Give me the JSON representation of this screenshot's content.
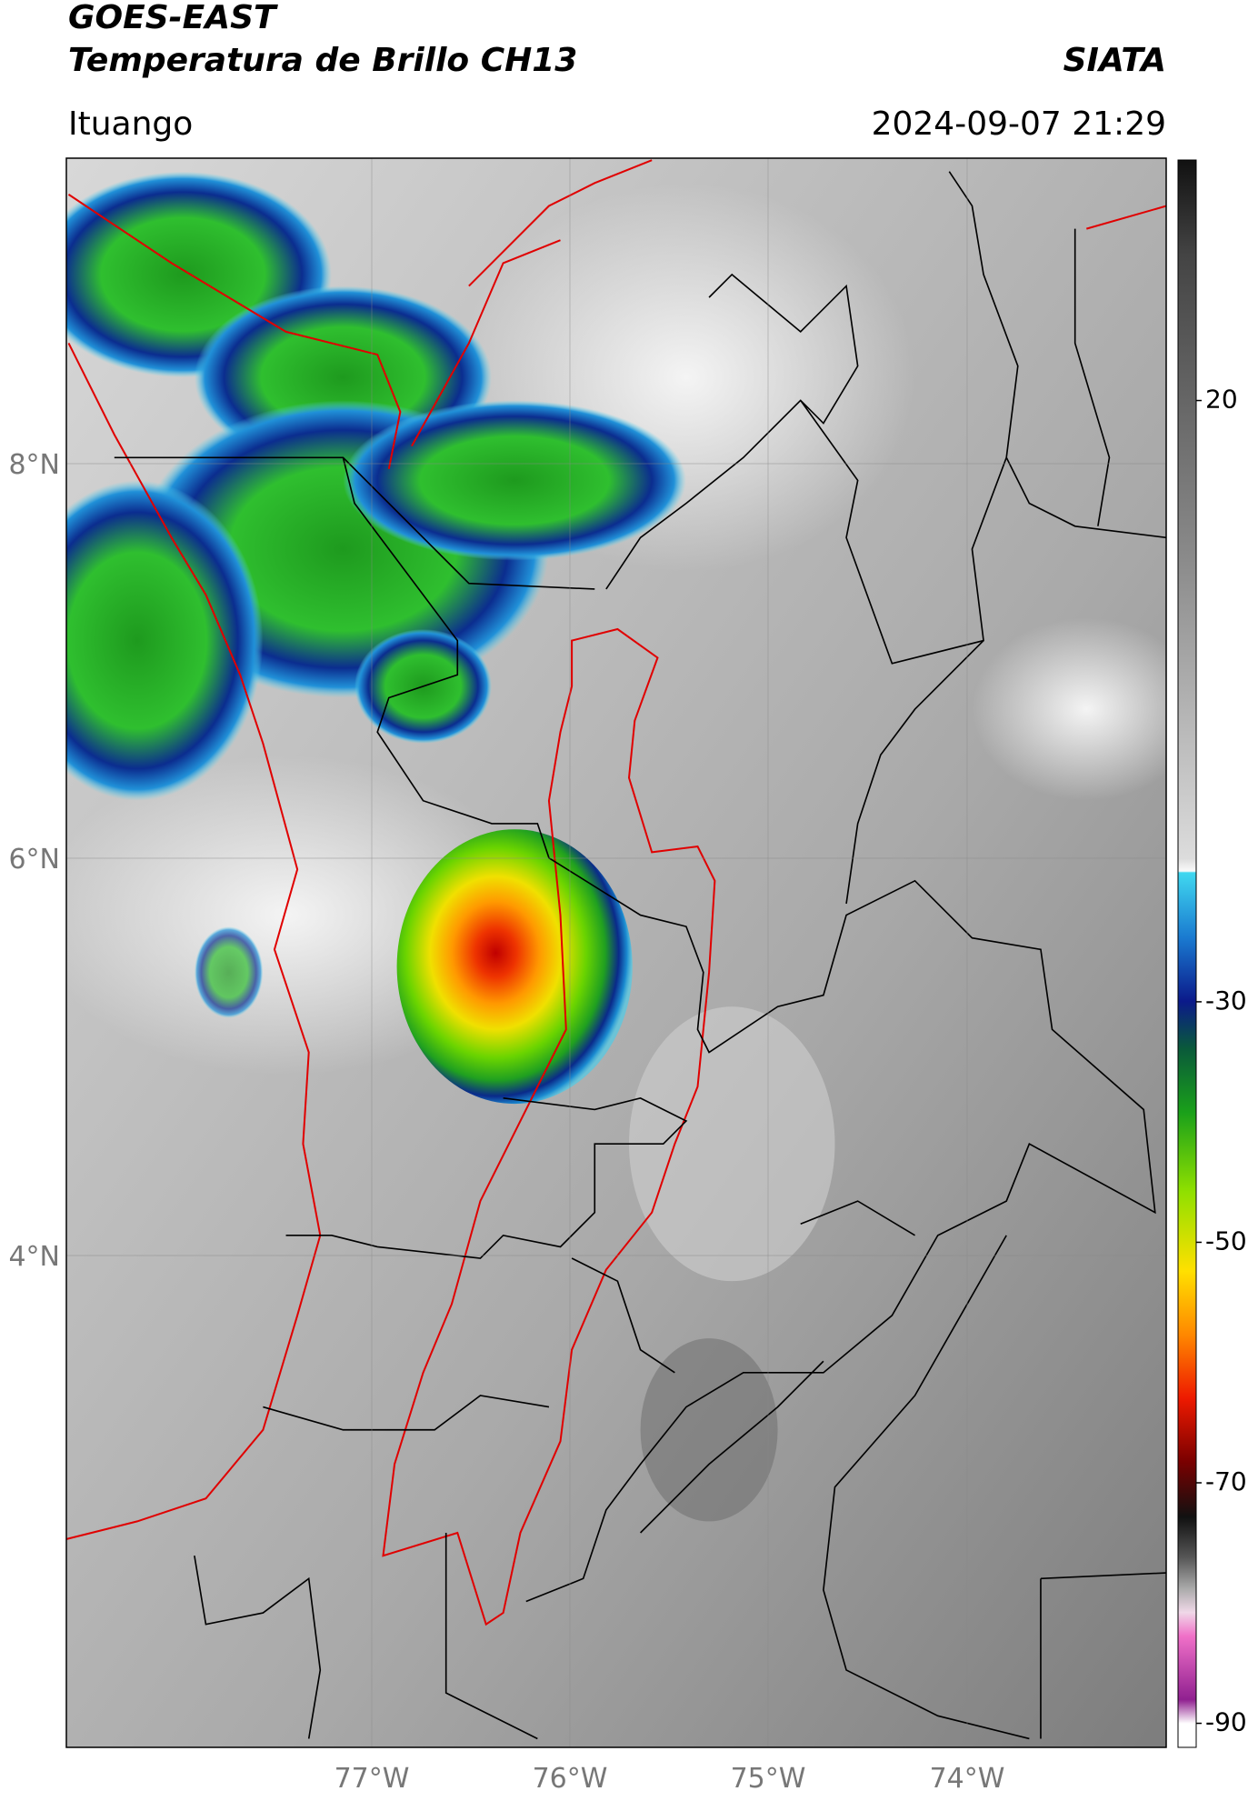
{
  "header": {
    "title_lines": [
      "GOES-EAST",
      "Temperatura de Brillo CH13"
    ],
    "source": "SIATA",
    "location": "Ituango",
    "datetime": "2024-09-07 21:29"
  },
  "map": {
    "lat_labels": [
      "8°N",
      "6°N",
      "4°N"
    ],
    "lon_labels": [
      "77°W",
      "76°W",
      "75°W",
      "74°W"
    ]
  },
  "colorbar": {
    "lim": [
      -92,
      40
    ],
    "ticks": [
      20,
      -30,
      -50,
      -70,
      -90
    ]
  }
}
